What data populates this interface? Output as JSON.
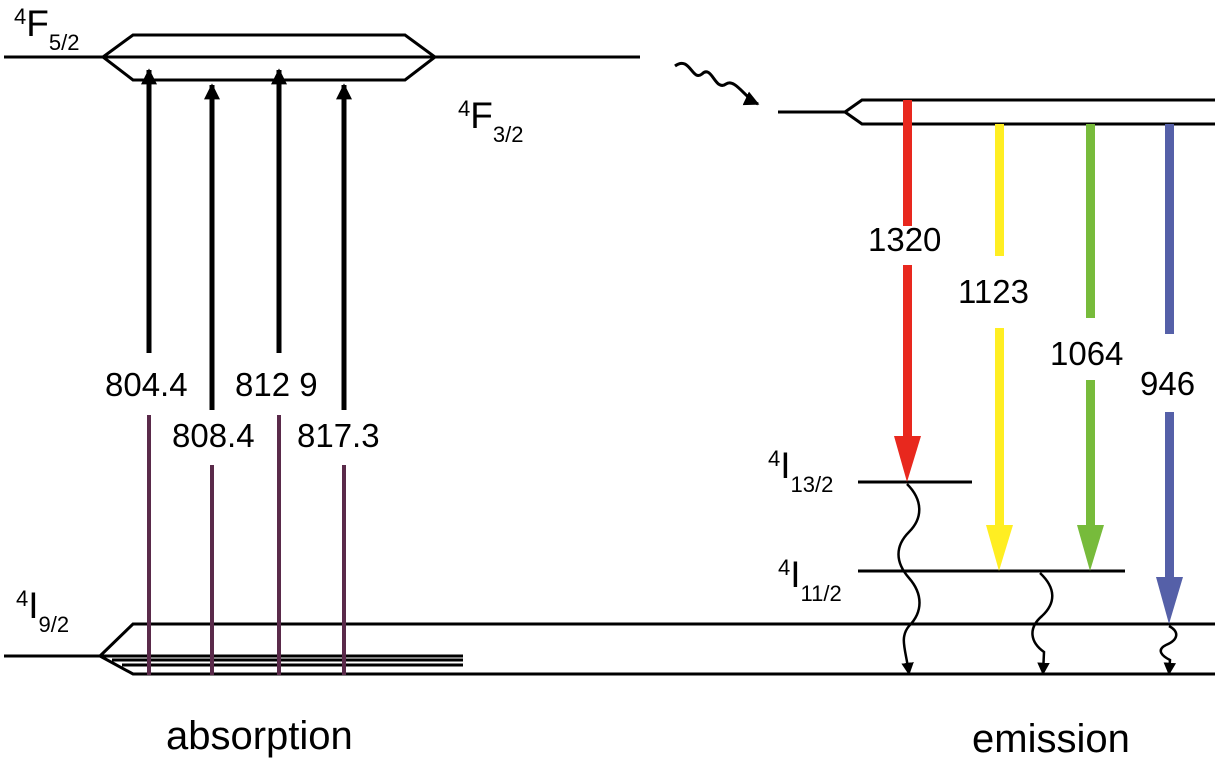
{
  "levels": {
    "F52": {
      "pre": "4",
      "main": "F",
      "sub": "5/2"
    },
    "F32": {
      "pre": "4",
      "main": "F",
      "sub": "3/2"
    },
    "I92": {
      "pre": "4",
      "main": "I",
      "sub": "9/2"
    },
    "I132": {
      "pre": "4",
      "main": "I",
      "sub": "13/2"
    },
    "I112": {
      "pre": "4",
      "main": "I",
      "sub": "11/2"
    }
  },
  "absorption": {
    "caption": "absorption",
    "upper_color": "#000000",
    "lower_color": "#5a2a4a",
    "wavelengths": [
      "804.4",
      "808.4",
      "812 9",
      "817.3"
    ]
  },
  "emission": {
    "caption": "emission",
    "transitions": [
      {
        "label": "1320",
        "color": "#e8281e"
      },
      {
        "label": "1123",
        "color": "#ffee22"
      },
      {
        "label": "1064",
        "color": "#77bb3b"
      },
      {
        "label": "946",
        "color": "#5560a8"
      }
    ]
  }
}
